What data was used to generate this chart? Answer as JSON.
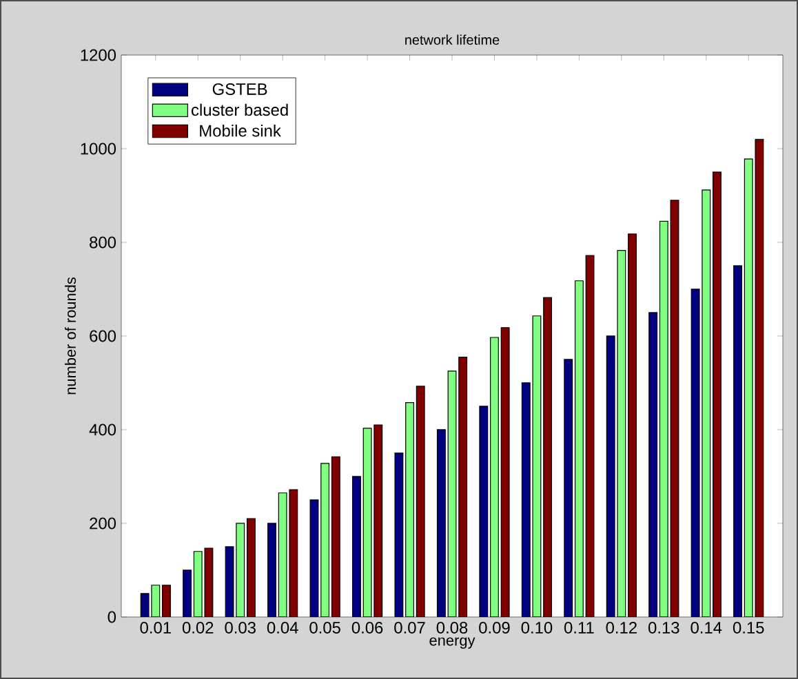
{
  "chart_data": {
    "type": "bar",
    "title": "network lifetime",
    "xlabel": "energy",
    "ylabel": "number of rounds",
    "categories": [
      "0.01",
      "0.02",
      "0.03",
      "0.04",
      "0.05",
      "0.06",
      "0.07",
      "0.08",
      "0.09",
      "0.10",
      "0.11",
      "0.12",
      "0.13",
      "0.14",
      "0.15"
    ],
    "series": [
      {
        "name": "GSTEB",
        "color": "#000080",
        "values": [
          50,
          100,
          150,
          200,
          250,
          300,
          350,
          400,
          450,
          500,
          550,
          600,
          650,
          700,
          750
        ]
      },
      {
        "name": "cluster based",
        "color": "#80ff80",
        "values": [
          68,
          140,
          200,
          265,
          328,
          403,
          458,
          525,
          597,
          643,
          718,
          783,
          845,
          912,
          978
        ]
      },
      {
        "name": "Mobile sink",
        "color": "#800000",
        "values": [
          68,
          147,
          210,
          272,
          342,
          410,
          493,
          555,
          618,
          682,
          772,
          818,
          890,
          950,
          1020
        ]
      }
    ],
    "ylim": [
      0,
      1200
    ],
    "yticks": [
      0,
      200,
      400,
      600,
      800,
      1000,
      1200
    ],
    "legend": "top left",
    "grid": false
  }
}
